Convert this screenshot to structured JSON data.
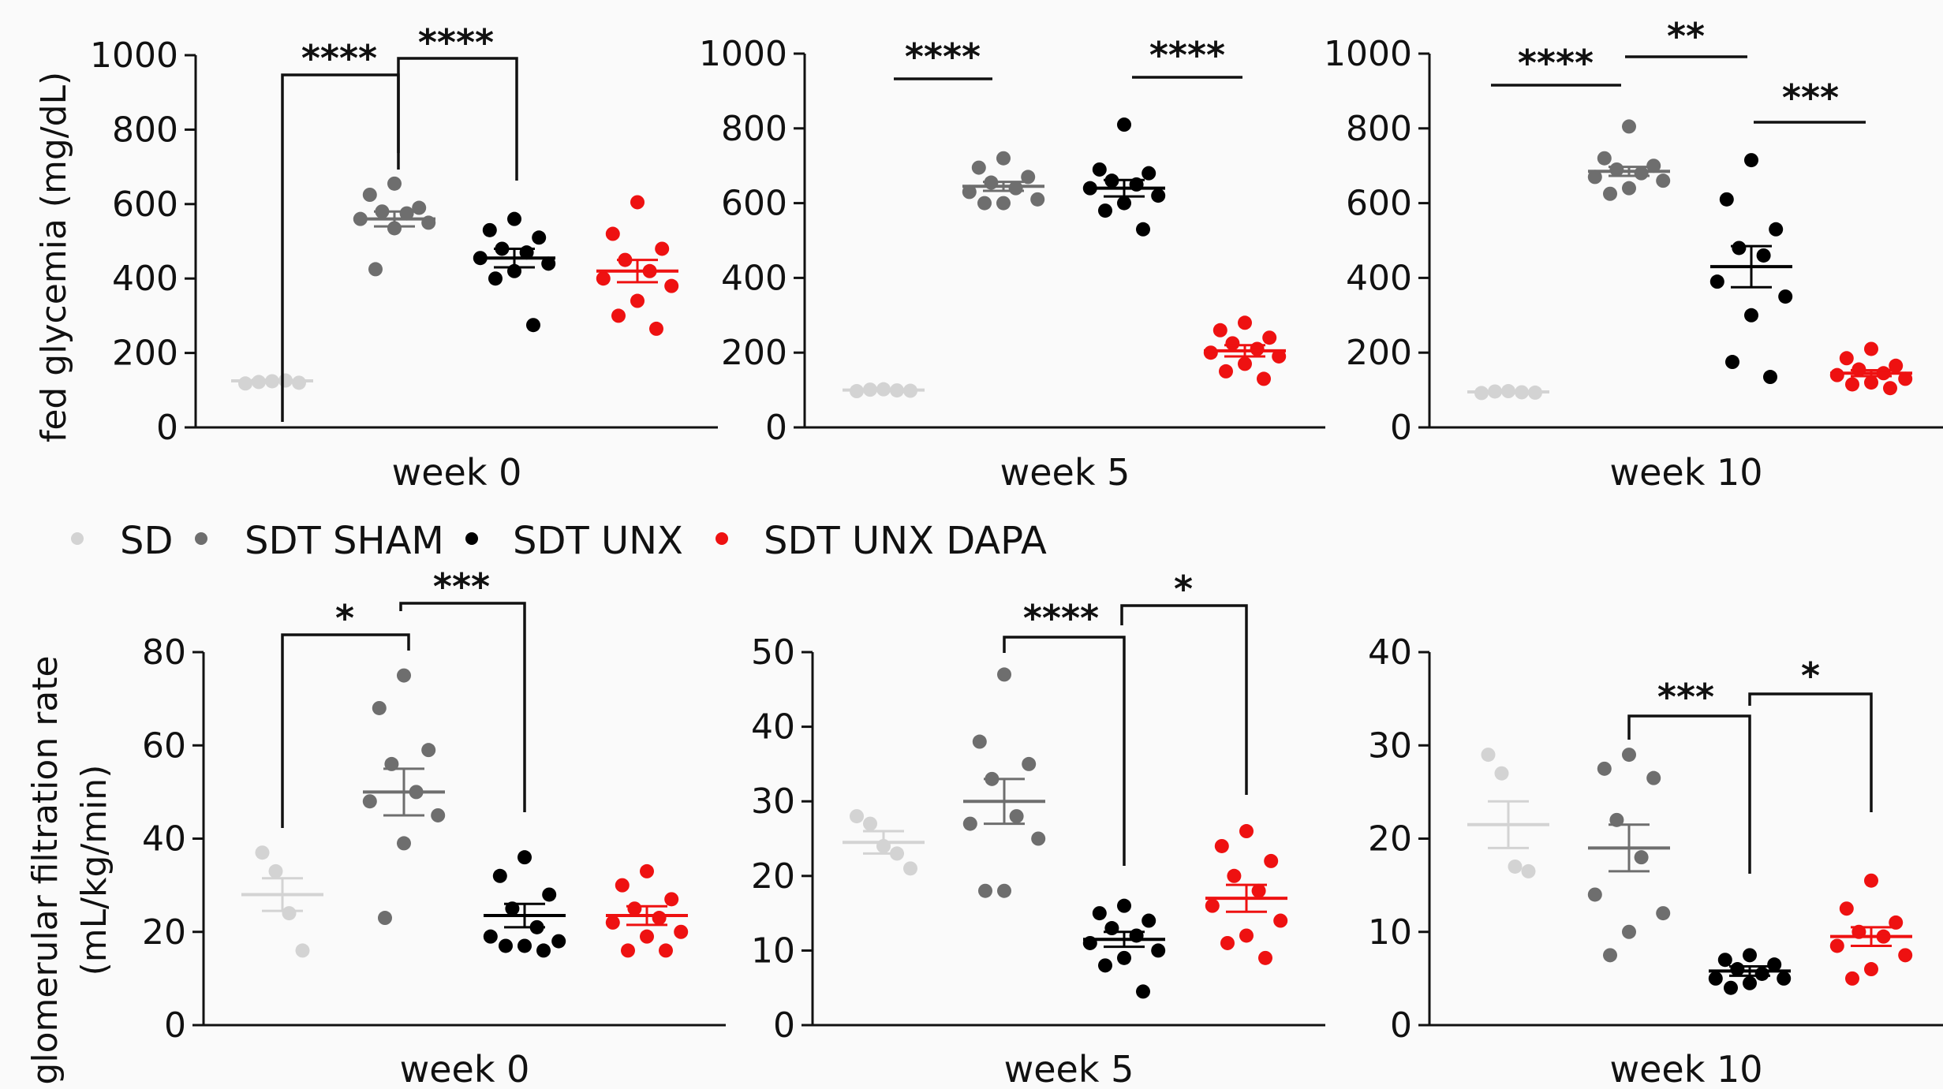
{
  "legend": {
    "items": [
      {
        "label": "SD",
        "color": "#d3d3d3"
      },
      {
        "label": "SDT SHAM",
        "color": "#6e6e6e"
      },
      {
        "label": "SDT UNX",
        "color": "#000000"
      },
      {
        "label": "SDT UNX DAPA",
        "color": "#ee1111"
      }
    ]
  },
  "chart_data": [
    {
      "type": "scatter",
      "ylabel": "fed glycemia (mg/dL)",
      "xlabel": "week 0",
      "ylim": [
        0,
        1000
      ],
      "yticks": [
        0,
        200,
        400,
        600,
        800,
        1000
      ],
      "grid": false,
      "groups": [
        {
          "name": "SD",
          "mean": 125,
          "sem": 3,
          "values": [
            118,
            122,
            124,
            126,
            120
          ]
        },
        {
          "name": "SDT SHAM",
          "mean": 560,
          "sem": 20,
          "values": [
            655,
            625,
            590,
            580,
            575,
            560,
            550,
            535,
            425
          ]
        },
        {
          "name": "SDT UNX",
          "mean": 455,
          "sem": 25,
          "values": [
            560,
            530,
            510,
            480,
            470,
            455,
            440,
            420,
            400,
            275
          ]
        },
        {
          "name": "SDT UNX DAPA",
          "mean": 420,
          "sem": 30,
          "values": [
            605,
            520,
            480,
            450,
            420,
            400,
            380,
            340,
            300,
            265
          ]
        }
      ],
      "comparisons": [
        {
          "from": 0,
          "to": 1,
          "label": "****"
        },
        {
          "from": 1,
          "to": 2,
          "label": "****"
        }
      ]
    },
    {
      "type": "scatter",
      "ylabel": "",
      "xlabel": "week 5",
      "ylim": [
        0,
        1000
      ],
      "yticks": [
        0,
        200,
        400,
        600,
        800,
        1000
      ],
      "grid": false,
      "groups": [
        {
          "name": "SD",
          "mean": 100,
          "sem": 2,
          "values": [
            97,
            101,
            102,
            99,
            98
          ]
        },
        {
          "name": "SDT SHAM",
          "mean": 645,
          "sem": 12,
          "values": [
            720,
            695,
            670,
            655,
            640,
            630,
            610,
            600,
            600
          ]
        },
        {
          "name": "SDT UNX",
          "mean": 640,
          "sem": 22,
          "values": [
            810,
            690,
            680,
            660,
            650,
            640,
            620,
            600,
            580,
            530
          ]
        },
        {
          "name": "SDT UNX DAPA",
          "mean": 205,
          "sem": 15,
          "values": [
            280,
            260,
            240,
            225,
            210,
            200,
            190,
            170,
            150,
            130
          ]
        }
      ],
      "comparisons": [
        {
          "from": 0,
          "to": 1,
          "label": "****"
        },
        {
          "from": 2,
          "to": 3,
          "label": "****"
        }
      ]
    },
    {
      "type": "scatter",
      "ylabel": "",
      "xlabel": "week 10",
      "ylim": [
        0,
        1000
      ],
      "yticks": [
        0,
        200,
        400,
        600,
        800,
        1000
      ],
      "grid": false,
      "groups": [
        {
          "name": "SD",
          "mean": 95,
          "sem": 2,
          "values": [
            92,
            96,
            97,
            94,
            93
          ]
        },
        {
          "name": "SDT SHAM",
          "mean": 685,
          "sem": 12,
          "values": [
            805,
            720,
            700,
            690,
            680,
            670,
            660,
            640,
            625
          ]
        },
        {
          "name": "SDT UNX",
          "mean": 430,
          "sem": 55,
          "values": [
            715,
            610,
            530,
            480,
            460,
            390,
            350,
            300,
            175,
            135
          ]
        },
        {
          "name": "SDT UNX DAPA",
          "mean": 145,
          "sem": 8,
          "values": [
            210,
            185,
            165,
            155,
            145,
            140,
            130,
            120,
            115,
            105
          ]
        }
      ],
      "comparisons": [
        {
          "from": 0,
          "to": 1,
          "label": "****"
        },
        {
          "from": 1,
          "to": 2,
          "label": "**"
        },
        {
          "from": 2,
          "to": 3,
          "label": "***"
        }
      ]
    },
    {
      "type": "scatter",
      "ylabel": "glomerular filtration rate (mL/kg/min)",
      "xlabel": "week 0",
      "ylim": [
        0,
        80
      ],
      "yticks": [
        0,
        20,
        40,
        60,
        80
      ],
      "grid": false,
      "groups": [
        {
          "name": "SD",
          "mean": 28,
          "sem": 3.5,
          "values": [
            37,
            33,
            24,
            16
          ]
        },
        {
          "name": "SDT SHAM",
          "mean": 50,
          "sem": 5,
          "values": [
            75,
            68,
            59,
            56,
            50,
            48,
            45,
            39,
            23
          ]
        },
        {
          "name": "SDT UNX",
          "mean": 23.5,
          "sem": 2.5,
          "values": [
            36,
            32,
            28,
            25,
            21,
            19,
            18,
            17,
            17,
            16
          ]
        },
        {
          "name": "SDT UNX DAPA",
          "mean": 23.5,
          "sem": 2,
          "values": [
            33,
            30,
            27,
            25,
            23,
            22,
            20,
            19,
            16,
            16
          ]
        }
      ],
      "comparisons": [
        {
          "from": 0,
          "to": 1,
          "label": "*"
        },
        {
          "from": 1,
          "to": 2,
          "label": "***"
        }
      ]
    },
    {
      "type": "scatter",
      "ylabel": "",
      "xlabel": "week 5",
      "ylim": [
        0,
        50
      ],
      "yticks": [
        0,
        10,
        20,
        30,
        40,
        50
      ],
      "grid": false,
      "groups": [
        {
          "name": "SD",
          "mean": 24.5,
          "sem": 1.5,
          "values": [
            28,
            27,
            24,
            23,
            21
          ]
        },
        {
          "name": "SDT SHAM",
          "mean": 30,
          "sem": 3,
          "values": [
            47,
            38,
            35,
            33,
            28,
            27,
            25,
            18,
            18
          ]
        },
        {
          "name": "SDT UNX",
          "mean": 11.5,
          "sem": 1,
          "values": [
            16,
            15,
            14,
            13,
            12,
            11,
            10,
            9,
            8,
            4.5
          ]
        },
        {
          "name": "SDT UNX DAPA",
          "mean": 17,
          "sem": 1.8,
          "values": [
            26,
            24,
            22,
            20,
            18,
            16,
            14,
            12,
            11,
            9
          ]
        }
      ],
      "comparisons": [
        {
          "from": 1,
          "to": 2,
          "label": "****"
        },
        {
          "from": 2,
          "to": 3,
          "label": "*"
        }
      ]
    },
    {
      "type": "scatter",
      "ylabel": "",
      "xlabel": "week 10",
      "ylim": [
        0,
        40
      ],
      "yticks": [
        0,
        10,
        20,
        30,
        40
      ],
      "grid": false,
      "groups": [
        {
          "name": "SD",
          "mean": 21.5,
          "sem": 2.5,
          "values": [
            29,
            27,
            17,
            16.5
          ]
        },
        {
          "name": "SDT SHAM",
          "mean": 19,
          "sem": 2.5,
          "values": [
            29,
            27.5,
            26.5,
            22,
            18,
            14,
            12,
            10,
            7.5
          ]
        },
        {
          "name": "SDT UNX",
          "mean": 5.8,
          "sem": 0.5,
          "values": [
            7.5,
            7,
            6.5,
            6,
            5.5,
            5,
            5,
            4.5,
            4
          ]
        },
        {
          "name": "SDT UNX DAPA",
          "mean": 9.5,
          "sem": 1,
          "values": [
            15.5,
            12.5,
            11,
            10,
            9.5,
            8.5,
            7.5,
            6,
            5
          ]
        }
      ],
      "comparisons": [
        {
          "from": 1,
          "to": 2,
          "label": "***"
        },
        {
          "from": 2,
          "to": 3,
          "label": "*"
        }
      ]
    }
  ]
}
